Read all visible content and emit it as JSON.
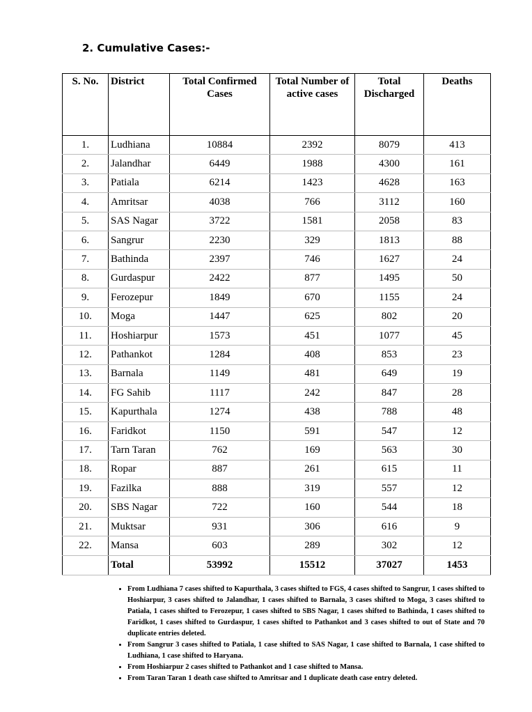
{
  "heading": "2.  Cumulative Cases:-",
  "table": {
    "headers": [
      "S. No.",
      "District",
      "Total Confirmed Cases",
      "Total Number of active cases",
      "Total Discharged",
      "Deaths"
    ],
    "rows": [
      [
        "1.",
        "Ludhiana",
        10884,
        2392,
        8079,
        413
      ],
      [
        "2.",
        "Jalandhar",
        6449,
        1988,
        4300,
        161
      ],
      [
        "3.",
        "Patiala",
        6214,
        1423,
        4628,
        163
      ],
      [
        "4.",
        "Amritsar",
        4038,
        766,
        3112,
        160
      ],
      [
        "5.",
        "SAS Nagar",
        3722,
        1581,
        2058,
        83
      ],
      [
        "6.",
        "Sangrur",
        2230,
        329,
        1813,
        88
      ],
      [
        "7.",
        "Bathinda",
        2397,
        746,
        1627,
        24
      ],
      [
        "8.",
        "Gurdaspur",
        2422,
        877,
        1495,
        50
      ],
      [
        "9.",
        "Ferozepur",
        1849,
        670,
        1155,
        24
      ],
      [
        "10.",
        "Moga",
        1447,
        625,
        802,
        20
      ],
      [
        "11.",
        "Hoshiarpur",
        1573,
        451,
        1077,
        45
      ],
      [
        "12.",
        "Pathankot",
        1284,
        408,
        853,
        23
      ],
      [
        "13.",
        "Barnala",
        1149,
        481,
        649,
        19
      ],
      [
        "14.",
        "FG Sahib",
        1117,
        242,
        847,
        28
      ],
      [
        "15.",
        "Kapurthala",
        1274,
        438,
        788,
        48
      ],
      [
        "16.",
        "Faridkot",
        1150,
        591,
        547,
        12
      ],
      [
        "17.",
        "Tarn Taran",
        762,
        169,
        563,
        30
      ],
      [
        "18.",
        "Ropar",
        887,
        261,
        615,
        11
      ],
      [
        "19.",
        "Fazilka",
        888,
        319,
        557,
        12
      ],
      [
        "20.",
        "SBS Nagar",
        722,
        160,
        544,
        18
      ],
      [
        "21.",
        "Muktsar",
        931,
        306,
        616,
        9
      ],
      [
        "22.",
        "Mansa",
        603,
        289,
        302,
        12
      ]
    ],
    "total": {
      "label": "Total",
      "values": [
        53992,
        15512,
        37027,
        1453
      ]
    }
  },
  "notes": [
    "From Ludhiana 7 cases shifted to Kapurthala, 3 cases shifted to FGS, 4 cases shifted to Sangrur, 1 cases shifted to Hoshiarpur, 3 cases shifted to Jalandhar, 1 cases shifted to Barnala, 3 cases shifted to Moga, 3 cases shifted to Patiala, 1 cases shifted to Ferozepur, 1 cases shifted to SBS Nagar, 1 cases shifted to Bathinda, 1 cases shifted to Faridkot, 1 cases shifted to Gurdaspur, 1 cases shifted to Pathankot and 3 cases shifted to out of State and 70 duplicate entries deleted.",
    "From Sangrur 3 cases shifted to Patiala, 1 case shifted to SAS Nagar, 1 case shifted to Barnala, 1 case shifted to Ludhiana, 1 case shifted to Haryana.",
    "From Hoshiarpur 2 cases shifted to Pathankot and 1 case shifted to Mansa.",
    "From Taran Taran 1 death case shifted to Amritsar and 1 duplicate death case entry deleted."
  ]
}
